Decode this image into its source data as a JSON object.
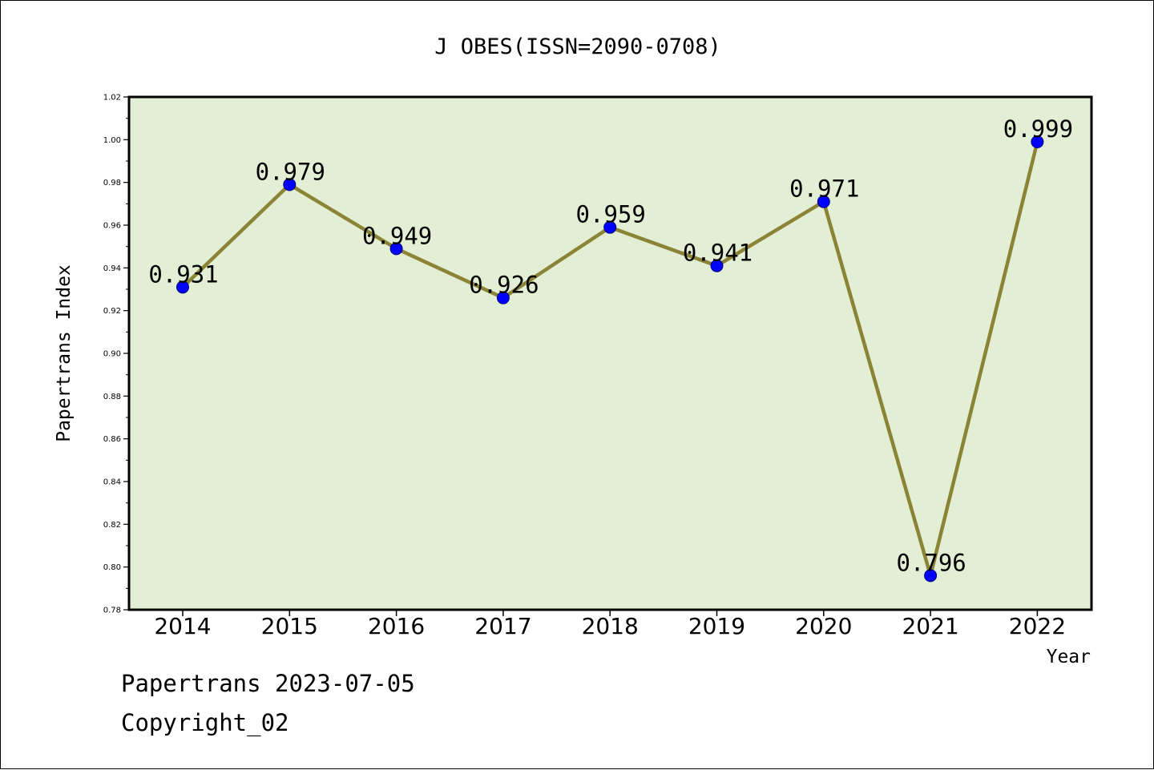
{
  "chart_data": {
    "type": "line",
    "title": "J OBES(ISSN=2090-0708)",
    "xlabel": "Year",
    "ylabel": "Papertrans Index",
    "categories": [
      "2014",
      "2015",
      "2016",
      "2017",
      "2018",
      "2019",
      "2020",
      "2021",
      "2022"
    ],
    "series": [
      {
        "values": [
          0.931,
          0.979,
          0.949,
          0.926,
          0.959,
          0.941,
          0.971,
          0.796,
          0.999
        ],
        "value_labels": [
          "0.931",
          "0.979",
          "0.949",
          "0.926",
          "0.959",
          "0.941",
          "0.971",
          "0.796",
          "0.999"
        ]
      }
    ],
    "ylim": [
      0.78,
      1.02
    ],
    "yticks": [
      "0.78",
      "0.80",
      "0.82",
      "0.84",
      "0.86",
      "0.88",
      "0.90",
      "0.92",
      "0.94",
      "0.96",
      "0.98",
      "1.00",
      "1.02"
    ],
    "grid": false,
    "legend": "none",
    "colors": {
      "plot_background": "#e2efd5",
      "line": "#8b8436",
      "marker": "#0000ff",
      "axes": "#000000"
    }
  },
  "footer": {
    "date_text": "Papertrans 2023-07-05",
    "copyright_text": "Copyright_02"
  }
}
